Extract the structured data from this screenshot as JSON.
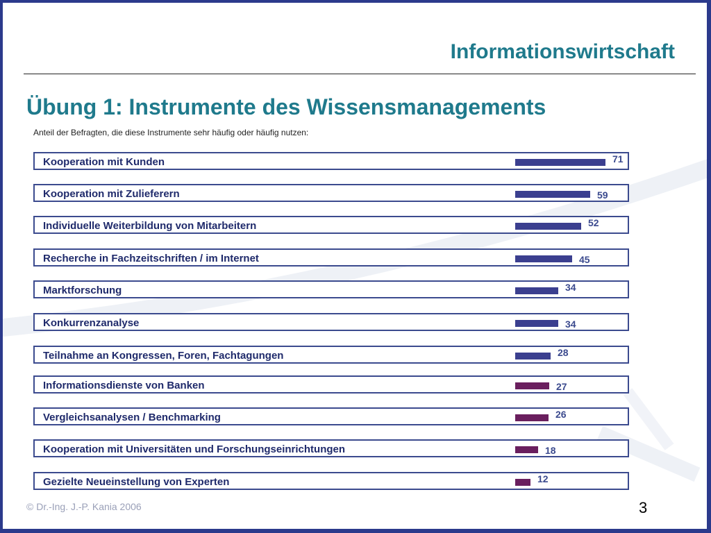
{
  "header": {
    "title": "Informationswirtschaft"
  },
  "slide": {
    "title": "Übung 1: Instrumente des Wissensmanagements"
  },
  "chart_data": {
    "type": "bar",
    "orientation": "horizontal",
    "title": "Anteil der Befragten, die diese Instrumente sehr häufig oder häufig nutzen:",
    "xlabel": "",
    "ylabel": "",
    "xlim": [
      0,
      71
    ],
    "grid": false,
    "legend": "none",
    "categories": [
      "Kooperation mit Kunden",
      "Kooperation mit Zulieferern",
      "Individuelle Weiterbildung von Mitarbeitern",
      "Recherche in Fachzeitschriften / im Internet",
      "Marktforschung",
      "Konkurrenzanalyse",
      "Teilnahme an Kongressen, Foren, Fachtagungen",
      "Informationsdienste von Banken",
      "Vergleichsanalysen / Benchmarking",
      "Kooperation mit Universitäten und Forschungseinrichtungen",
      "Gezielte Neueinstellung von Experten"
    ],
    "values": [
      71,
      59,
      52,
      45,
      34,
      34,
      28,
      27,
      26,
      18,
      12
    ],
    "value_labels": [
      "71",
      "59",
      "52",
      "45",
      "34",
      "34",
      "28",
      "27",
      "26",
      "18",
      "12"
    ],
    "colors": {
      "bar_primary": "#3b3f8f",
      "bar_secondary": "#6a1f5e",
      "frame": "#3b4a8e"
    }
  },
  "footer": {
    "copyright": "©  Dr.-Ing. J.-P. Kania 2006",
    "page_number": "3"
  }
}
